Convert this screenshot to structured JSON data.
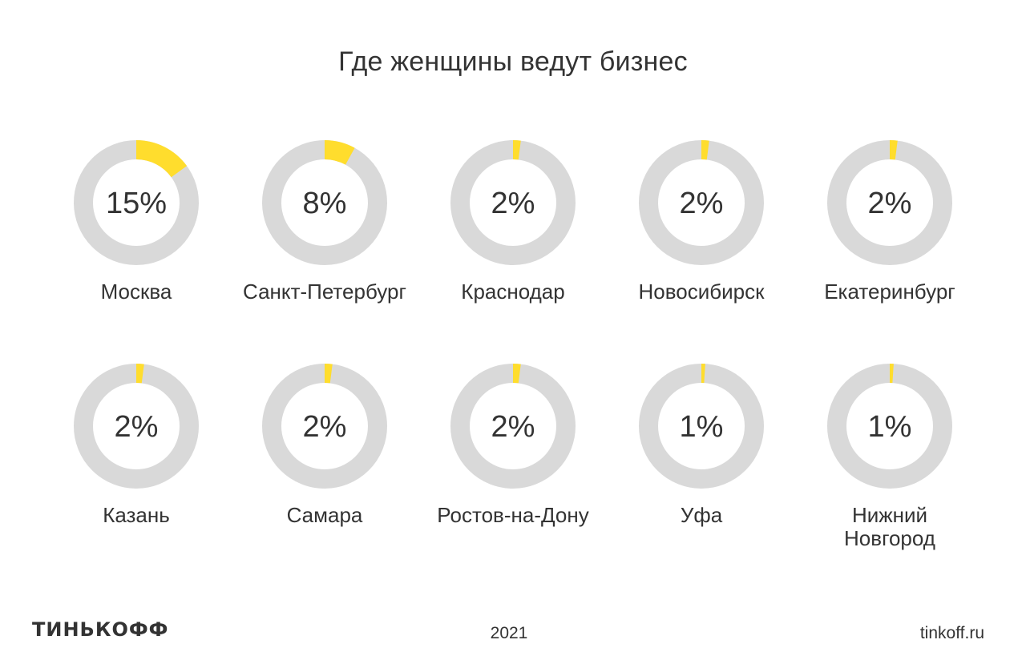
{
  "title": "Где женщины ведут бизнес",
  "footer": {
    "logo": "ТИНЬКОФФ",
    "year": "2021",
    "site": "tinkoff.ru"
  },
  "colors": {
    "accent": "#ffdd2d",
    "track": "#d9d9d9",
    "text": "#333333"
  },
  "chart_data": {
    "type": "pie",
    "title": "Где женщины ведут бизнес",
    "unit": "%",
    "categories": [
      [
        "Москва"
      ],
      [
        "Санкт-Петербург"
      ],
      [
        "Краснодар"
      ],
      [
        "Новосибирск"
      ],
      [
        "Екатеринбург"
      ],
      [
        "Казань"
      ],
      [
        "Самара"
      ],
      [
        "Ростов-на-Дону"
      ],
      [
        "Уфа"
      ],
      [
        "Нижний",
        "Новгород"
      ]
    ],
    "values": [
      15,
      8,
      2,
      2,
      2,
      2,
      2,
      2,
      1,
      1
    ],
    "value_labels": [
      "15%",
      "8%",
      "2%",
      "2%",
      "2%",
      "2%",
      "2%",
      "2%",
      "1%",
      "1%"
    ]
  }
}
